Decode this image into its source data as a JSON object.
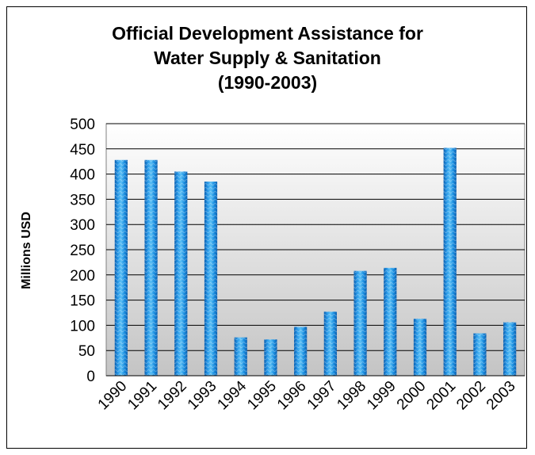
{
  "chart_data": {
    "type": "bar",
    "title": [
      "Official Development Assistance for",
      "Water Supply & Sanitation",
      "(1990-2003)"
    ],
    "xlabel": "",
    "ylabel": "Millions USD",
    "categories": [
      "1990",
      "1991",
      "1992",
      "1993",
      "1994",
      "1995",
      "1996",
      "1997",
      "1998",
      "1999",
      "2000",
      "2001",
      "2002",
      "2003"
    ],
    "values": [
      428,
      428,
      405,
      385,
      76,
      72,
      97,
      127,
      208,
      214,
      113,
      452,
      84,
      106
    ],
    "ylim": [
      0,
      500
    ],
    "yticks": [
      "0",
      "50",
      "100",
      "150",
      "200",
      "250",
      "300",
      "350",
      "400",
      "450",
      "500"
    ],
    "grid": true,
    "colors": {
      "bar": "#1c8fe0",
      "bar_dark": "#0a5fb0",
      "bar_light": "#5cc0f5",
      "plot_top": "#ffffff",
      "plot_bottom": "#c4c4c4"
    }
  }
}
